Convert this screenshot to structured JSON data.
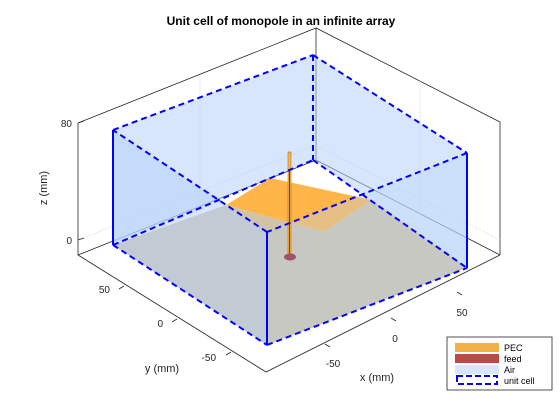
{
  "figure": {
    "title": "Unit cell of monopole in an infinite array",
    "xlabel": "x (mm)",
    "ylabel": "y (mm)",
    "zlabel": "z (mm)",
    "x_ticks": [
      "-50",
      "0",
      "50"
    ],
    "y_ticks": [
      "50",
      "0",
      "-50"
    ],
    "z_ticks": [
      "80",
      "0"
    ]
  },
  "legend": {
    "items": [
      {
        "label": "PEC",
        "color": "#F2B147"
      },
      {
        "label": "feed",
        "color": "#B94A48"
      },
      {
        "label": "Air",
        "color": "#C8DDF8"
      },
      {
        "label": "unit cell",
        "color": "#0000FF"
      }
    ]
  },
  "colors": {
    "pec": "#FFB84D",
    "ground_plane_visible": "#D3C3A3",
    "feed": "#A0526D",
    "air_fill": "#B4CFF9",
    "unit_cell_border": "#0000FF",
    "axis_box": "#262626",
    "grid": "#E0E0E0"
  }
}
